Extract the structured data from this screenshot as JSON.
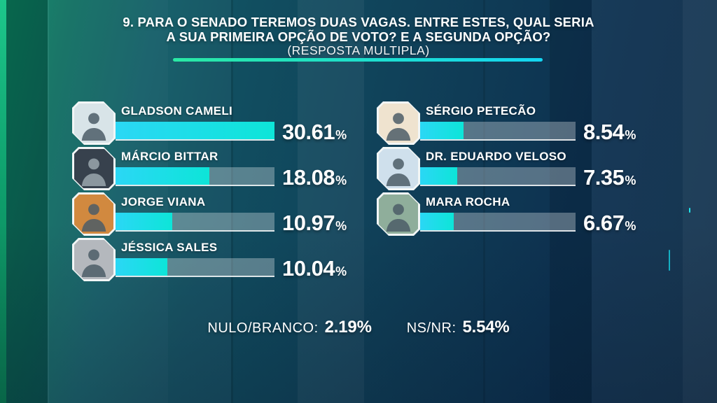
{
  "chart_data": {
    "type": "bar",
    "orientation": "horizontal",
    "title": "9. PARA O SENADO TEREMOS DUAS VAGAS. ENTRE ESTES, QUAL SERIA A SUA PRIMEIRA OPÇÃO DE VOTO? E A SEGUNDA OPÇÃO?",
    "title_lines": [
      "9. PARA O SENADO TEREMOS DUAS VAGAS. ENTRE ESTES, QUAL SERIA",
      "A SUA PRIMEIRA OPÇÃO DE VOTO? E A SEGUNDA OPÇÃO?"
    ],
    "subtitle": "(RESPOSTA MULTIPLA)",
    "unit": "%",
    "xlim": [
      0,
      30.61
    ],
    "categories": [
      "GLADSON CAMELI",
      "MÁRCIO BITTAR",
      "JORGE VIANA",
      "JÉSSICA SALES",
      "SÉRGIO PETECÃO",
      "DR. EDUARDO VELOSO",
      "MARA ROCHA"
    ],
    "values": [
      30.61,
      18.08,
      10.97,
      10.04,
      8.54,
      7.35,
      6.67
    ],
    "columns": {
      "left": [
        {
          "name": "GLADSON CAMELI",
          "value": 30.61,
          "label": "30.61",
          "photo_bg": "#d8e4e8"
        },
        {
          "name": "MÁRCIO BITTAR",
          "value": 18.08,
          "label": "18.08",
          "photo_bg": "#37414d"
        },
        {
          "name": "JORGE VIANA",
          "value": 10.97,
          "label": "10.97",
          "photo_bg": "#d1893f"
        },
        {
          "name": "JÉSSICA SALES",
          "value": 10.04,
          "label": "10.04",
          "photo_bg": "#b4b8bd"
        }
      ],
      "right": [
        {
          "name": "SÉRGIO PETECÃO",
          "value": 8.54,
          "label": "8.54",
          "photo_bg": "#efe3cf"
        },
        {
          "name": "DR. EDUARDO VELOSO",
          "value": 7.35,
          "label": "7.35",
          "photo_bg": "#cfe0ec"
        },
        {
          "name": "MARA ROCHA",
          "value": 6.67,
          "label": "6.67",
          "photo_bg": "#8fae9b"
        }
      ]
    },
    "annotations": [
      {
        "label": "NULO/BRANCO:",
        "value": 2.19,
        "value_label": "2.19%"
      },
      {
        "label": "NS/NR:",
        "value": 5.54,
        "value_label": "5.54%"
      }
    ],
    "legend_position": "none",
    "grid": false
  },
  "colors": {
    "bar_fill_start": "#2bd7f5",
    "bar_fill_end": "#0de5d8",
    "bar_track": "rgba(255,255,255,0.30)",
    "underline_green": "#2ae8a4",
    "underline_cyan": "#14d6f2",
    "text": "#ffffff",
    "background_left": "#0b8663",
    "background_right": "#0c2b48",
    "photo_frame": "#f2f6f6"
  }
}
